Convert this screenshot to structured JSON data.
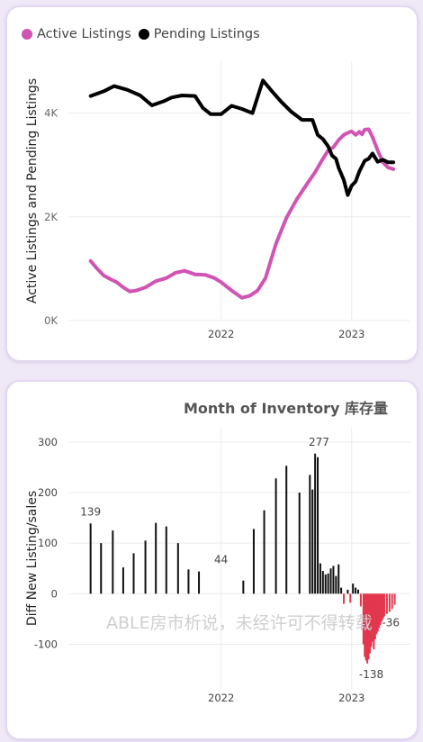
{
  "chart_data": [
    {
      "type": "line",
      "legend_position": "top-left",
      "ylabel": "Active Listings and Pending Listings",
      "ylim": [
        0,
        5000
      ],
      "y_ticks": [
        {
          "v": 0,
          "label": "0K"
        },
        {
          "v": 2000,
          "label": "2K"
        },
        {
          "v": 4000,
          "label": "4K"
        }
      ],
      "x_ticks": [
        {
          "v": 2022,
          "label": "2022"
        },
        {
          "v": 2023,
          "label": "2023"
        }
      ],
      "xlim": [
        2020.83,
        2023.45
      ],
      "grid": true,
      "series": [
        {
          "name": "Active Listings",
          "color": "#d154b4",
          "x": [
            2021.0,
            2021.05,
            2021.1,
            2021.15,
            2021.2,
            2021.25,
            2021.3,
            2021.35,
            2021.42,
            2021.5,
            2021.58,
            2021.65,
            2021.72,
            2021.8,
            2021.88,
            2021.95,
            2022.0,
            2022.08,
            2022.16,
            2022.22,
            2022.28,
            2022.34,
            2022.42,
            2022.5,
            2022.58,
            2022.66,
            2022.72,
            2022.78,
            2022.82,
            2022.86,
            2022.9,
            2022.94,
            2022.97,
            2023.0,
            2023.03,
            2023.06,
            2023.08,
            2023.1,
            2023.13,
            2023.16,
            2023.2,
            2023.24,
            2023.28,
            2023.32
          ],
          "y": [
            1150,
            1000,
            870,
            800,
            740,
            640,
            560,
            580,
            640,
            760,
            820,
            920,
            960,
            890,
            880,
            820,
            740,
            580,
            440,
            480,
            580,
            820,
            1480,
            1980,
            2340,
            2640,
            2860,
            3120,
            3280,
            3340,
            3480,
            3580,
            3620,
            3650,
            3580,
            3640,
            3590,
            3680,
            3690,
            3540,
            3280,
            3050,
            2950,
            2920
          ]
        },
        {
          "name": "Pending Listings",
          "color": "#000000",
          "x": [
            2021.0,
            2021.1,
            2021.18,
            2021.28,
            2021.38,
            2021.47,
            2021.56,
            2021.62,
            2021.7,
            2021.8,
            2021.86,
            2021.92,
            2022.0,
            2022.08,
            2022.16,
            2022.24,
            2022.32,
            2022.4,
            2022.46,
            2022.54,
            2022.62,
            2022.7,
            2022.74,
            2022.78,
            2022.82,
            2022.85,
            2022.88,
            2022.9,
            2022.94,
            2022.97,
            2023.0,
            2023.03,
            2023.06,
            2023.1,
            2023.13,
            2023.16,
            2023.2,
            2023.24,
            2023.28,
            2023.32
          ],
          "y": [
            4330,
            4420,
            4520,
            4450,
            4340,
            4150,
            4230,
            4300,
            4340,
            4330,
            4100,
            3980,
            3980,
            4140,
            4080,
            4000,
            4630,
            4390,
            4220,
            4020,
            3870,
            3870,
            3580,
            3500,
            3360,
            3180,
            3120,
            2950,
            2710,
            2420,
            2600,
            2680,
            2880,
            3080,
            3120,
            3220,
            3060,
            3100,
            3050,
            3050
          ]
        }
      ]
    },
    {
      "type": "bar",
      "title": "Month of Inventory 库存量",
      "ylabel": "Diff New Listing/sales",
      "ylim": [
        -190,
        330
      ],
      "y_ticks": [
        {
          "v": -100,
          "label": "-100"
        },
        {
          "v": 0,
          "label": "0"
        },
        {
          "v": 100,
          "label": "100"
        },
        {
          "v": 200,
          "label": "200"
        },
        {
          "v": 300,
          "label": "300"
        }
      ],
      "x_ticks": [
        {
          "v": 2022,
          "label": "2022"
        },
        {
          "v": 2023,
          "label": "2023"
        }
      ],
      "xlim": [
        2020.83,
        2023.45
      ],
      "positive_color": "#111111",
      "negative_color": "#e2374f",
      "watermark": "ABLE房市析说，未经许可不得转载",
      "annotations": [
        {
          "x": 2021.0,
          "y": 139,
          "label": "139"
        },
        {
          "x": 2022.0,
          "y": 44,
          "label": "44"
        },
        {
          "x": 2022.75,
          "y": 277,
          "label": "277"
        },
        {
          "x": 2023.15,
          "y": -138,
          "label": "-138"
        },
        {
          "x": 2023.3,
          "y": -36,
          "label": "-36"
        }
      ],
      "bars": [
        {
          "x": 2021.0,
          "v": 139
        },
        {
          "x": 2021.08,
          "v": 100
        },
        {
          "x": 2021.17,
          "v": 125
        },
        {
          "x": 2021.25,
          "v": 52
        },
        {
          "x": 2021.33,
          "v": 80
        },
        {
          "x": 2021.42,
          "v": 105
        },
        {
          "x": 2021.5,
          "v": 140
        },
        {
          "x": 2021.58,
          "v": 133
        },
        {
          "x": 2021.67,
          "v": 100
        },
        {
          "x": 2021.75,
          "v": 48
        },
        {
          "x": 2021.83,
          "v": 44
        },
        {
          "x": 2022.08,
          "v": 0
        },
        {
          "x": 2022.17,
          "v": 26
        },
        {
          "x": 2022.25,
          "v": 128
        },
        {
          "x": 2022.33,
          "v": 165
        },
        {
          "x": 2022.42,
          "v": 228
        },
        {
          "x": 2022.5,
          "v": 253
        },
        {
          "x": 2022.6,
          "v": 200
        },
        {
          "x": 2022.68,
          "v": 235
        },
        {
          "x": 2022.7,
          "v": 206
        },
        {
          "x": 2022.72,
          "v": 277
        },
        {
          "x": 2022.74,
          "v": 270
        },
        {
          "x": 2022.76,
          "v": 60
        },
        {
          "x": 2022.78,
          "v": 45
        },
        {
          "x": 2022.8,
          "v": 38
        },
        {
          "x": 2022.82,
          "v": 40
        },
        {
          "x": 2022.84,
          "v": 50
        },
        {
          "x": 2022.86,
          "v": 55
        },
        {
          "x": 2022.88,
          "v": 35
        },
        {
          "x": 2022.9,
          "v": 58
        },
        {
          "x": 2022.92,
          "v": 12
        },
        {
          "x": 2022.94,
          "v": -20
        },
        {
          "x": 2022.97,
          "v": 8
        },
        {
          "x": 2022.99,
          "v": -18
        },
        {
          "x": 2023.01,
          "v": 20
        },
        {
          "x": 2023.03,
          "v": 12
        },
        {
          "x": 2023.05,
          "v": 8
        },
        {
          "x": 2023.07,
          "v": -25
        },
        {
          "x": 2023.09,
          "v": -100
        },
        {
          "x": 2023.1,
          "v": -125
        },
        {
          "x": 2023.11,
          "v": -132
        },
        {
          "x": 2023.12,
          "v": -138
        },
        {
          "x": 2023.13,
          "v": -130
        },
        {
          "x": 2023.14,
          "v": -118
        },
        {
          "x": 2023.15,
          "v": -105
        },
        {
          "x": 2023.16,
          "v": -95
        },
        {
          "x": 2023.17,
          "v": -110
        },
        {
          "x": 2023.18,
          "v": -90
        },
        {
          "x": 2023.19,
          "v": -80
        },
        {
          "x": 2023.2,
          "v": -75
        },
        {
          "x": 2023.21,
          "v": -68
        },
        {
          "x": 2023.22,
          "v": -62
        },
        {
          "x": 2023.23,
          "v": -55
        },
        {
          "x": 2023.24,
          "v": -50
        },
        {
          "x": 2023.25,
          "v": -45
        },
        {
          "x": 2023.27,
          "v": -40
        },
        {
          "x": 2023.29,
          "v": -36
        },
        {
          "x": 2023.31,
          "v": -30
        },
        {
          "x": 2023.33,
          "v": -22
        }
      ]
    }
  ]
}
